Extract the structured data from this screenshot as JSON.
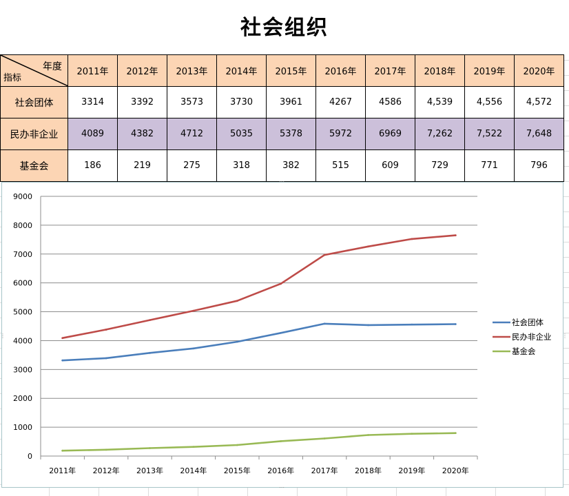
{
  "page": {
    "title": "社会组织"
  },
  "table": {
    "corner_top": "年度",
    "corner_bottom": "指标",
    "years": [
      "2011年",
      "2012年",
      "2013年",
      "2014年",
      "2015年",
      "2016年",
      "2017年",
      "2018年",
      "2019年",
      "2020年"
    ],
    "rows": [
      {
        "label": "社会团体",
        "cells": [
          "3314",
          "3392",
          "3573",
          "3730",
          "3961",
          "4267",
          "4586",
          "4,539",
          "4,556",
          "4,572"
        ]
      },
      {
        "label": "民办非企业",
        "cells": [
          "4089",
          "4382",
          "4712",
          "5035",
          "5378",
          "5972",
          "6969",
          "7,262",
          "7,522",
          "7,648"
        ]
      },
      {
        "label": "基金会",
        "cells": [
          "186",
          "219",
          "275",
          "318",
          "382",
          "515",
          "609",
          "729",
          "771",
          "796"
        ]
      }
    ],
    "colors": {
      "header_fill": "#fcd5b4",
      "purple_fill": "#ccc0da"
    }
  },
  "chart_data": {
    "type": "line",
    "categories": [
      "2011年",
      "2012年",
      "2013年",
      "2014年",
      "2015年",
      "2016年",
      "2017年",
      "2018年",
      "2019年",
      "2020年"
    ],
    "ylim": [
      0,
      9000
    ],
    "yticks": [
      0,
      1000,
      2000,
      3000,
      4000,
      5000,
      6000,
      7000,
      8000,
      9000
    ],
    "grid": true,
    "legend": "right",
    "series": [
      {
        "name": "社会团体",
        "color": "#4a7ebb",
        "values": [
          3314,
          3392,
          3573,
          3730,
          3961,
          4267,
          4586,
          4539,
          4556,
          4572
        ]
      },
      {
        "name": "民办非企业",
        "color": "#be4b48",
        "values": [
          4089,
          4382,
          4712,
          5035,
          5378,
          5972,
          6969,
          7262,
          7522,
          7648
        ]
      },
      {
        "name": "基金会",
        "color": "#98b954",
        "values": [
          186,
          219,
          275,
          318,
          382,
          515,
          609,
          729,
          771,
          796
        ]
      }
    ]
  }
}
